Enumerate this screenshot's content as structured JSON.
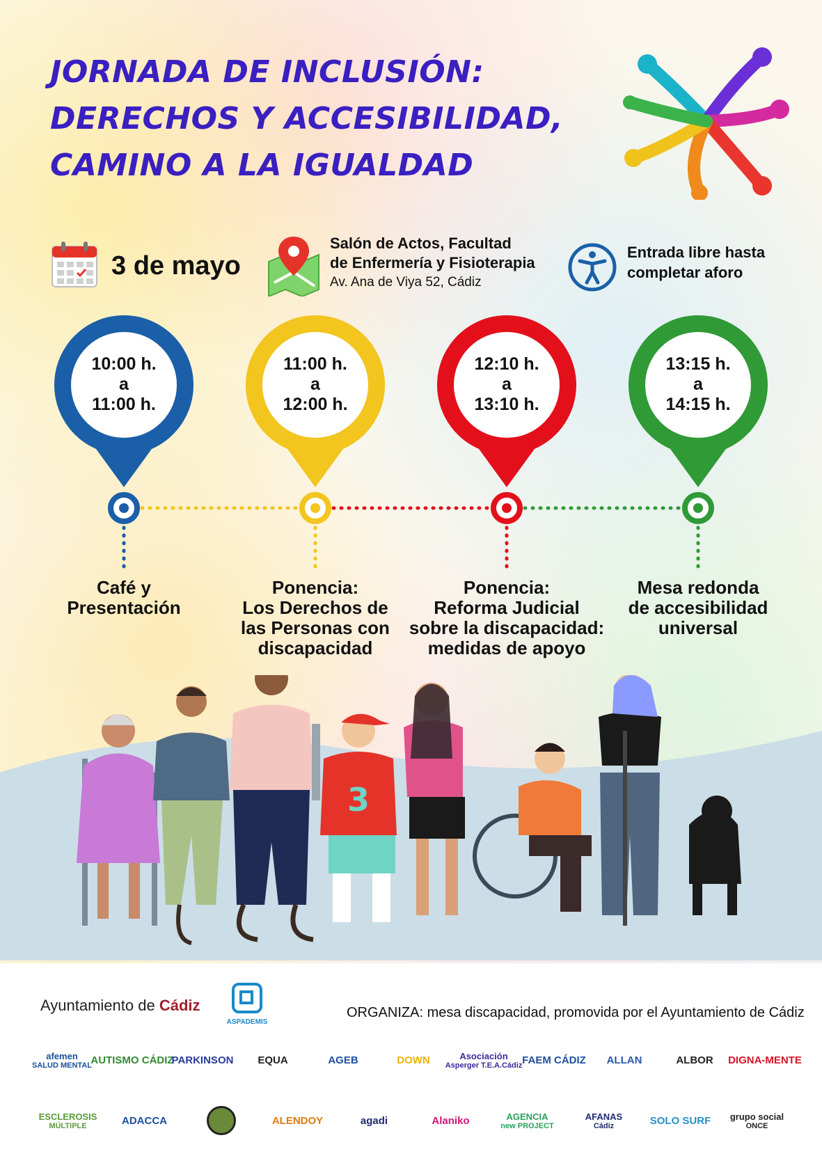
{
  "title": {
    "line1": "JORNADA DE INCLUSIÓN:",
    "line2": "DERECHOS Y ACCESIBILIDAD,",
    "line3": "CAMINO A LA IGUALDAD"
  },
  "info": {
    "date": "3 de mayo",
    "place_line1": "Salón de Actos, Facultad",
    "place_line2": "de Enfermería y Fisioterapia",
    "address": "Av. Ana de Viya 52, Cádiz",
    "access_line1": "Entrada libre hasta",
    "access_line2": "completar aforo"
  },
  "schedule": [
    {
      "start": "10:00 h.",
      "sep": "a",
      "end": "11:00 h.",
      "color": "#1a5fa8",
      "lines": [
        "Café y",
        "Presentación"
      ]
    },
    {
      "start": "11:00 h.",
      "sep": "a",
      "end": "12:00 h.",
      "color": "#f2c51f",
      "lines": [
        "Ponencia:",
        "Los Derechos de",
        "las Personas con",
        "discapacidad"
      ]
    },
    {
      "start": "12:10 h.",
      "sep": "a",
      "end": "13:10 h.",
      "color": "#e3101c",
      "lines": [
        "Ponencia:",
        "Reforma Judicial",
        "sobre la discapacidad:",
        "medidas de apoyo"
      ]
    },
    {
      "start": "13:15 h.",
      "sep": "a",
      "end": "14:15 h.",
      "color": "#2f9a36",
      "lines": [
        "Mesa redonda",
        "de accesibilidad",
        "universal"
      ]
    }
  ],
  "footer": {
    "ayuntamiento_prefix": "Ayuntamiento de ",
    "ayuntamiento_city": "Cádiz",
    "aspademis": "ASPADEMIS",
    "organiza_label": "ORGANIZA:",
    "organiza_text": " mesa discapacidad, promovida por el Ayuntamiento de Cádiz",
    "logos_row1": [
      {
        "name": "afemen",
        "line1": "afemen",
        "line2": "SALUD MENTAL",
        "color": "#1a4f9c"
      },
      {
        "name": "autismo-cadiz",
        "line1": "AUTISMO CÁDIZ",
        "line2": "",
        "color": "#2e8b2e"
      },
      {
        "name": "parkinson",
        "line1": "PARKINSON",
        "line2": "",
        "color": "#2a3b9c"
      },
      {
        "name": "equa",
        "line1": "EQUA",
        "line2": "",
        "color": "#222222"
      },
      {
        "name": "espina-bifida",
        "line1": "AGEB",
        "line2": "",
        "color": "#1f4fa0"
      },
      {
        "name": "down-cadiz",
        "line1": "DOWN",
        "line2": "",
        "color": "#f0b400"
      },
      {
        "name": "asperger",
        "line1": "Asociación",
        "line2": "Asperger T.E.A.Cádiz",
        "color": "#3c2a9c"
      },
      {
        "name": "faem-cadiz",
        "line1": "FAEM CÁDIZ",
        "line2": "",
        "color": "#1f4fa0"
      },
      {
        "name": "allan",
        "line1": "ALLAN",
        "line2": "",
        "color": "#2a57b0"
      },
      {
        "name": "albor",
        "line1": "ALBOR",
        "line2": "",
        "color": "#222222"
      },
      {
        "name": "digna-mente",
        "line1": "DIGNA-MENTE",
        "line2": "",
        "color": "#d4152a"
      }
    ],
    "logos_row2": [
      {
        "name": "esclerosis-multiple",
        "line1": "ESCLEROSIS",
        "line2": "MÚLTIPLE",
        "color": "#5a9a3a"
      },
      {
        "name": "adacca",
        "line1": "ADACCA",
        "line2": "",
        "color": "#1a4f9c"
      },
      {
        "name": "unknown-seal",
        "line1": "",
        "line2": "",
        "color": "#222222"
      },
      {
        "name": "alendoy",
        "line1": "ALENDOY",
        "line2": "",
        "color": "#e07a10"
      },
      {
        "name": "agadi",
        "line1": "agadi",
        "line2": "",
        "color": "#1f2a70"
      },
      {
        "name": "alaniko",
        "line1": "Alaniko",
        "line2": "",
        "color": "#d4157a"
      },
      {
        "name": "agencia-new-project",
        "line1": "AGENCIA",
        "line2": "new PROJECT",
        "color": "#2aa05a"
      },
      {
        "name": "afanas",
        "line1": "AFANAS",
        "line2": "Cádiz",
        "color": "#1f2a70"
      },
      {
        "name": "solo-surf",
        "line1": "SOLO SURF",
        "line2": "",
        "color": "#2a90c8"
      },
      {
        "name": "once",
        "line1": "grupo social",
        "line2": "ONCE",
        "color": "#222222"
      }
    ]
  }
}
